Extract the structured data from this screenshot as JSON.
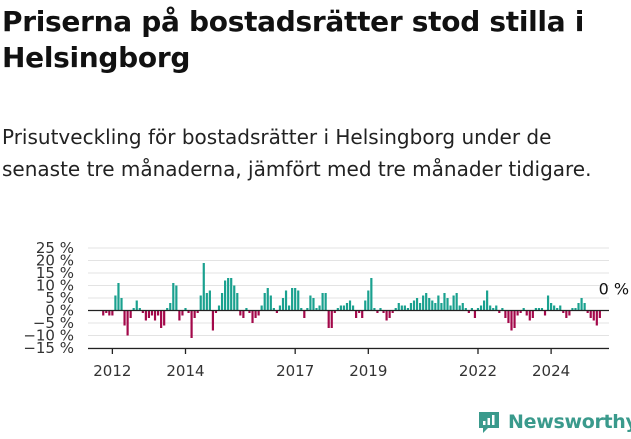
{
  "header": {
    "title": "Priserna på bostadsrätter stod stilla i Helsingborg",
    "subtitle": "Prisutveckling för bostadsrätter i Helsingborg under de senaste tre månaderna, jämfört med tre månader tidigare."
  },
  "brand": {
    "name": "Newsworthy",
    "color": "#3a9a8c"
  },
  "chart_data": {
    "type": "bar",
    "title": "",
    "xlabel": "",
    "ylabel": "",
    "unit": "%",
    "x_start": "2011-10",
    "x_step": "month",
    "xlim": [
      "2011-05",
      "2025-08"
    ],
    "ylim": [
      -15,
      25
    ],
    "y_ticks": [
      {
        "value": 25,
        "label": "25 %"
      },
      {
        "value": 20,
        "label": "20 %"
      },
      {
        "value": 15,
        "label": "15 %"
      },
      {
        "value": 10,
        "label": "10 %"
      },
      {
        "value": 5,
        "label": "5 %"
      },
      {
        "value": 0,
        "label": "0 %"
      },
      {
        "value": -5,
        "label": "−5 %"
      },
      {
        "value": -10,
        "label": "−10 %"
      },
      {
        "value": -15,
        "label": "−15 %"
      }
    ],
    "x_ticks": [
      {
        "date": "2012-01",
        "label": "2012"
      },
      {
        "date": "2014-01",
        "label": "2014"
      },
      {
        "date": "2017-01",
        "label": "2017"
      },
      {
        "date": "2019-01",
        "label": "2019"
      },
      {
        "date": "2022-01",
        "label": "2022"
      },
      {
        "date": "2024-01",
        "label": "2024"
      }
    ],
    "grid": true,
    "colors": {
      "positive": "#1aa18f",
      "negative": "#a3084a"
    },
    "annotation": {
      "date": "2025-05",
      "value": 0,
      "label": "0 %"
    },
    "values": [
      -2,
      -1,
      -2,
      -2,
      6,
      11,
      5,
      -6,
      -10,
      -3,
      1,
      4,
      1,
      -1,
      -4,
      -3,
      -2,
      -4,
      -2,
      -7,
      -6,
      1,
      3,
      11,
      10,
      -4,
      -2,
      1,
      -1,
      -11,
      -3,
      -1,
      6,
      19,
      7,
      8,
      -8,
      -1,
      2,
      7,
      12,
      13,
      13,
      10,
      7,
      -2,
      -3,
      1,
      -1,
      -5,
      -3,
      -2,
      2,
      7,
      9,
      6,
      1,
      -1,
      2,
      5,
      8,
      2,
      9,
      9,
      8,
      1,
      -3,
      1,
      6,
      5,
      1,
      2,
      7,
      7,
      -7,
      -7,
      -1,
      1,
      2,
      2,
      3,
      4,
      2,
      -3,
      -1,
      -3,
      4,
      8,
      13,
      1,
      -1,
      1,
      -1,
      -4,
      -3,
      -1,
      1,
      3,
      2,
      2,
      1,
      3,
      4,
      5,
      3,
      6,
      7,
      5,
      4,
      3,
      6,
      3,
      7,
      5,
      2,
      6,
      7,
      2,
      3,
      1,
      -1,
      1,
      -3,
      1,
      2,
      4,
      8,
      2,
      1,
      2,
      -1,
      1,
      -3,
      -5,
      -8,
      -7,
      -2,
      -1,
      1,
      -2,
      -4,
      -3,
      1,
      1,
      1,
      -2,
      6,
      3,
      2,
      1,
      2,
      -1,
      -3,
      -2,
      1,
      1,
      3,
      5,
      3,
      -1,
      -3,
      -4,
      -6,
      -3,
      0
    ]
  }
}
